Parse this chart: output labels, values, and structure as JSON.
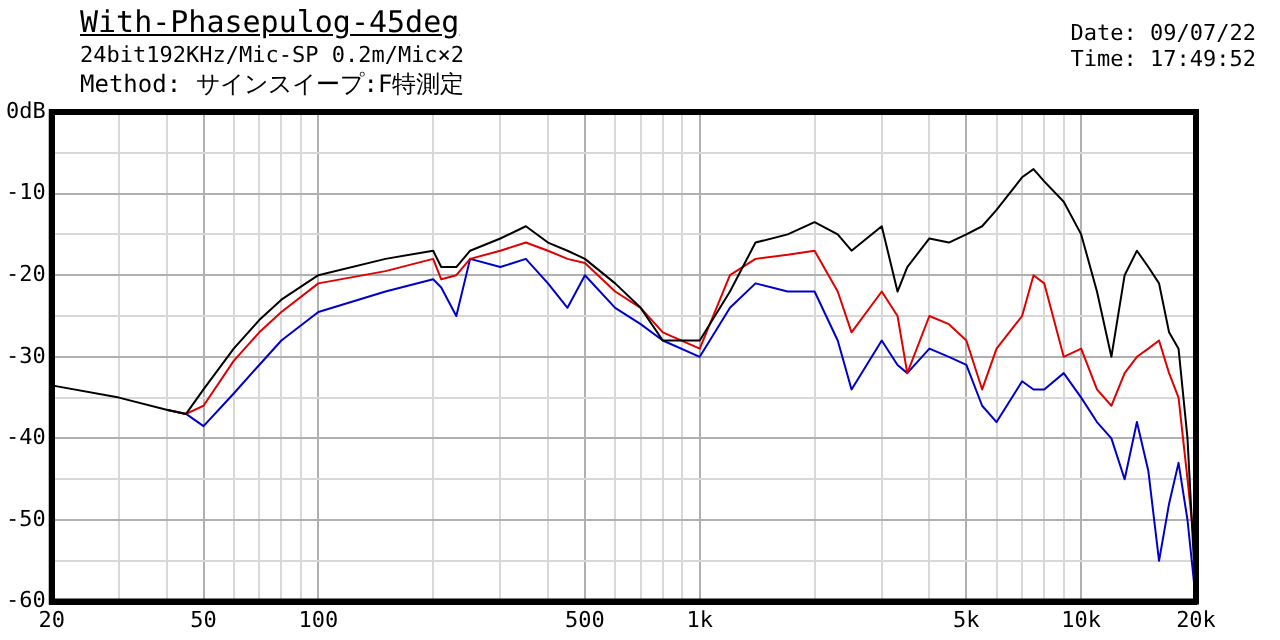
{
  "chart_data": {
    "type": "line",
    "title": "With-Phasepulog-45deg",
    "subtitle": "24bit192KHz/Mic-SP 0.2m/Mic×2",
    "annotations": [
      "Method: サインスイープ:F特測定",
      "Date: 09/07/22",
      "Time: 17:49:52"
    ],
    "x": [
      20,
      30,
      40,
      45,
      50,
      60,
      70,
      80,
      100,
      150,
      200,
      210,
      230,
      250,
      300,
      350,
      400,
      450,
      500,
      600,
      700,
      800,
      1000,
      1200,
      1400,
      1700,
      2000,
      2300,
      2500,
      3000,
      3300,
      3500,
      4000,
      4500,
      5000,
      5500,
      6000,
      7000,
      7500,
      8000,
      9000,
      10000,
      11000,
      12000,
      13000,
      14000,
      15000,
      16000,
      17000,
      18000,
      19000,
      20000
    ],
    "series": [
      {
        "color": "#000000",
        "values": [
          -33.5,
          -35,
          -36.5,
          -37,
          -34,
          -29,
          -25.5,
          -23,
          -20,
          -18,
          -17,
          -19,
          -19,
          -17,
          -15.5,
          -14,
          -16,
          -17,
          -18,
          -21,
          -24,
          -28,
          -28,
          -22,
          -16,
          -15,
          -13.5,
          -15,
          -17,
          -14,
          -22,
          -19,
          -15.5,
          -16,
          -15,
          -14,
          -12,
          -8,
          -7,
          -8.5,
          -11,
          -15,
          -22,
          -30,
          -20,
          -17,
          -19,
          -21,
          -27,
          -29,
          -40,
          -60
        ]
      },
      {
        "color": "#e00000",
        "values": [
          null,
          null,
          -36.5,
          -37,
          -36,
          -30.5,
          -27,
          -24.5,
          -21,
          -19.5,
          -18,
          -20.5,
          -20,
          -18,
          -17,
          -16,
          -17,
          -18,
          -18.5,
          -22,
          -24,
          -27,
          -29,
          -20,
          -18,
          -17.5,
          -17,
          -22,
          -27,
          -22,
          -25,
          -32,
          -25,
          -26,
          -28,
          -34,
          -29,
          -25,
          -20,
          -21,
          -30,
          -29,
          -34,
          -36,
          -32,
          -30,
          -29,
          -28,
          -32,
          -35,
          -45,
          -55
        ]
      },
      {
        "color": "#0000cc",
        "values": [
          null,
          null,
          -36.5,
          -37,
          -38.5,
          -34.5,
          -31,
          -28,
          -24.5,
          -22,
          -20.5,
          -21.5,
          -25,
          -18,
          -19,
          -18,
          -21,
          -24,
          -20,
          -24,
          -26,
          -28,
          -30,
          -24,
          -21,
          -22,
          -22,
          -28,
          -34,
          -28,
          -31,
          -32,
          -29,
          -30,
          -31,
          -36,
          -38,
          -33,
          -34,
          -34,
          -32,
          -35,
          -38,
          -40,
          -45,
          -38,
          -44,
          -55,
          -48,
          -43,
          -50,
          -60
        ]
      }
    ],
    "xlim": [
      20,
      20000
    ],
    "ylim": [
      -60,
      0
    ],
    "xticks": [
      20,
      {
        "value": 30,
        "label": null
      },
      {
        "value": 40,
        "label": null
      },
      50,
      {
        "value": 60,
        "label": null
      },
      {
        "value": 70,
        "label": null
      },
      {
        "value": 80,
        "label": null
      },
      {
        "value": 90,
        "label": null
      },
      100,
      {
        "value": 200,
        "label": null
      },
      {
        "value": 300,
        "label": null
      },
      {
        "value": 400,
        "label": null
      },
      500,
      {
        "value": 600,
        "label": null
      },
      {
        "value": 700,
        "label": null
      },
      {
        "value": 800,
        "label": null
      },
      {
        "value": 900,
        "label": null
      },
      {
        "value": 1000,
        "label": "1k"
      },
      {
        "value": 2000,
        "label": null
      },
      {
        "value": 3000,
        "label": null
      },
      {
        "value": 4000,
        "label": null
      },
      {
        "value": 5000,
        "label": "5k"
      },
      {
        "value": 6000,
        "label": null
      },
      {
        "value": 7000,
        "label": null
      },
      {
        "value": 8000,
        "label": null
      },
      {
        "value": 9000,
        "label": null
      },
      {
        "value": 10000,
        "label": "10k"
      },
      {
        "value": 20000,
        "label": "20k"
      }
    ],
    "yticks": [
      -60,
      {
        "value": -55,
        "label": null
      },
      -50,
      {
        "value": -45,
        "label": null
      },
      -40,
      {
        "value": -35,
        "label": null
      },
      -30,
      {
        "value": -25,
        "label": null
      },
      -20,
      {
        "value": -15,
        "label": null
      },
      -10,
      {
        "value": -5,
        "label": null
      },
      {
        "value": 0,
        "label": "0dB"
      }
    ],
    "log": "x",
    "grid": true,
    "marker": "none",
    "line_style": "solid"
  }
}
